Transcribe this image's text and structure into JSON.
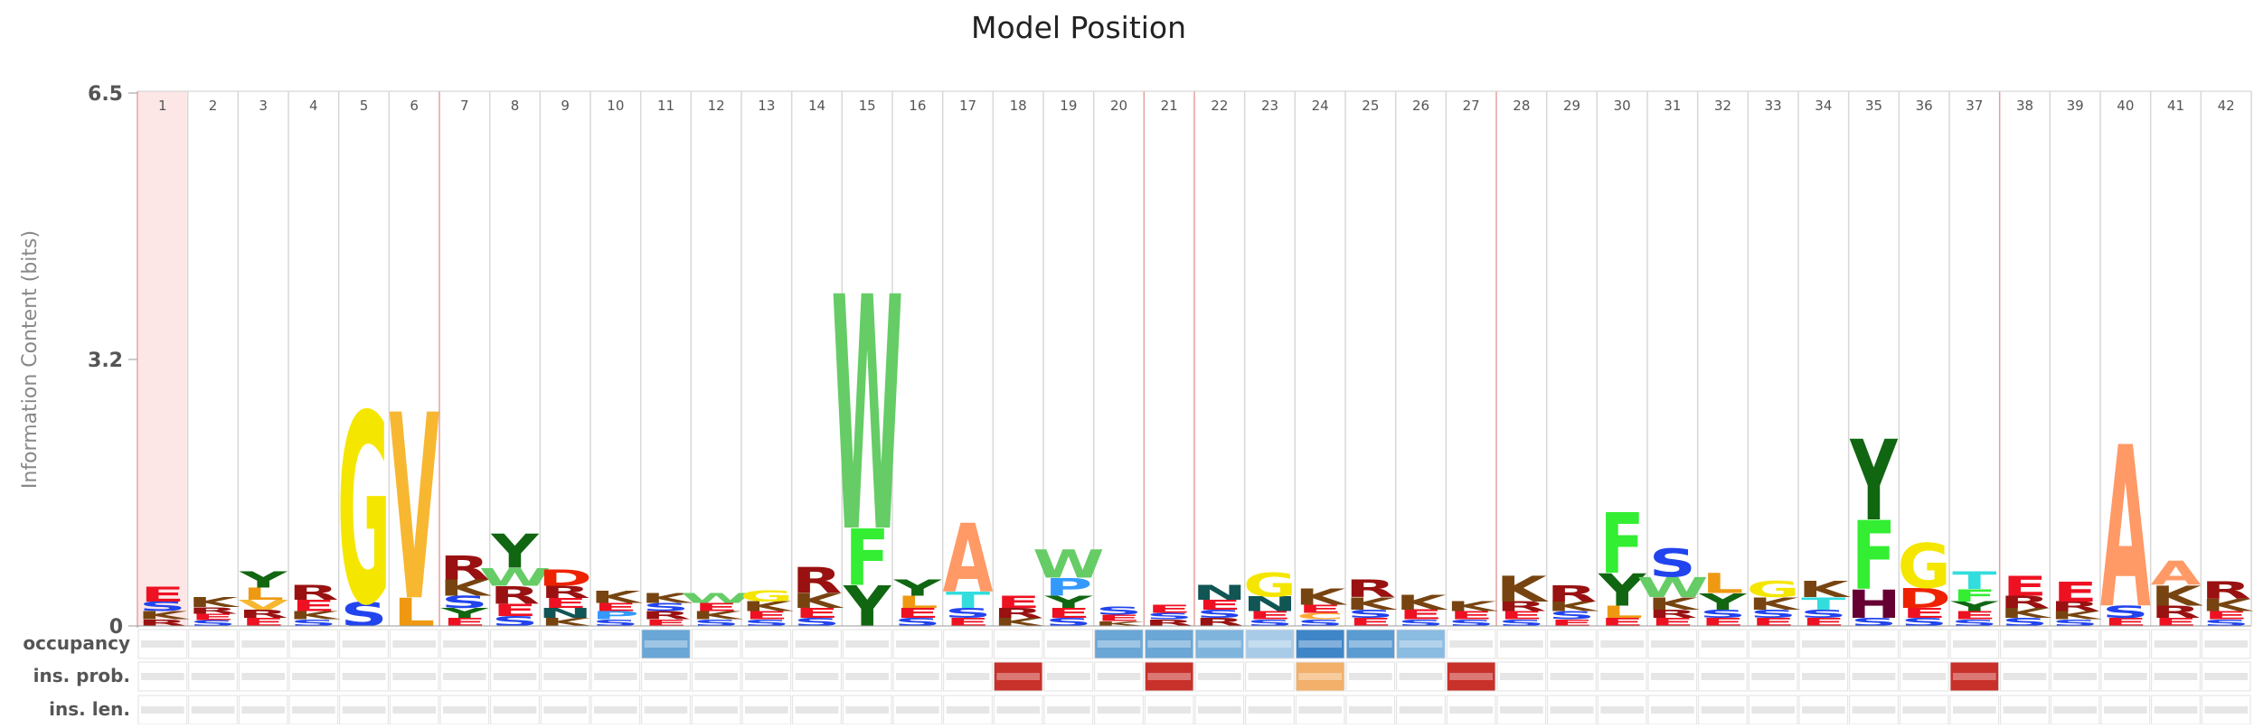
{
  "chart_data": {
    "type": "sequence-logo",
    "title": "Model Position",
    "ylabel": "Information Content (bits)",
    "ylim": [
      0,
      6.5
    ],
    "yticks": [
      "0",
      "3.2",
      "6.5"
    ],
    "positions": [
      "1",
      "2",
      "3",
      "4",
      "5",
      "6",
      "7",
      "8",
      "9",
      "10",
      "11",
      "12",
      "13",
      "14",
      "15",
      "16",
      "17",
      "18",
      "19",
      "20",
      "21",
      "22",
      "23",
      "24",
      "25",
      "26",
      "27",
      "28",
      "29",
      "30",
      "31",
      "32",
      "33",
      "34",
      "35",
      "36",
      "37",
      "38",
      "39",
      "40",
      "41",
      "42"
    ],
    "highlighted_positions": [
      1
    ],
    "row_labels": [
      "occupancy",
      "ins. prob.",
      "ins. len."
    ],
    "residue_colors": {
      "G": "#f5e600",
      "V": "#f7b731",
      "A": "#ff9966",
      "W": "#66cc66",
      "F": "#33ee33",
      "Y": "#116611",
      "H": "#660033",
      "R": "#991111",
      "K": "#774411",
      "E": "#ee1122",
      "D": "#ee2200",
      "S": "#2244ee",
      "T": "#33dddd",
      "N": "#115555",
      "P": "#3399ff",
      "Q": "#448899",
      "L": "#ee9911",
      "I": "#ddaa22",
      "C": "#ffaa33",
      "M": "#eecc44"
    },
    "columns": [
      {
        "pos": 1,
        "stack": [
          [
            "E",
            0.18
          ],
          [
            "S",
            0.12
          ],
          [
            "K",
            0.1
          ],
          [
            "R",
            0.08
          ]
        ]
      },
      {
        "pos": 2,
        "stack": [
          [
            "K",
            0.12
          ],
          [
            "E",
            0.08
          ],
          [
            "R",
            0.08
          ],
          [
            "S",
            0.07
          ]
        ]
      },
      {
        "pos": 3,
        "stack": [
          [
            "L",
            0.15
          ],
          [
            "Y",
            0.2
          ],
          [
            "V",
            0.12
          ],
          [
            "E",
            0.1
          ],
          [
            "R",
            0.1
          ]
        ]
      },
      {
        "pos": 4,
        "stack": [
          [
            "R",
            0.18
          ],
          [
            "E",
            0.14
          ],
          [
            "K",
            0.1
          ],
          [
            "S",
            0.08
          ]
        ]
      },
      {
        "pos": 5,
        "stack": [
          [
            "G",
            2.35
          ],
          [
            "S",
            0.3
          ]
        ]
      },
      {
        "pos": 6,
        "stack": [
          [
            "V",
            2.3
          ],
          [
            "L",
            0.35
          ]
        ]
      },
      {
        "pos": 7,
        "stack": [
          [
            "R",
            0.3
          ],
          [
            "K",
            0.2
          ],
          [
            "S",
            0.15
          ],
          [
            "Y",
            0.12
          ],
          [
            "E",
            0.1
          ]
        ]
      },
      {
        "pos": 8,
        "stack": [
          [
            "Y",
            0.42
          ],
          [
            "R",
            0.22
          ],
          [
            "W",
            0.22
          ],
          [
            "E",
            0.15
          ],
          [
            "S",
            0.12
          ]
        ]
      },
      {
        "pos": 9,
        "stack": [
          [
            "D",
            0.2
          ],
          [
            "R",
            0.15
          ],
          [
            "N",
            0.12
          ],
          [
            "E",
            0.12
          ],
          [
            "K",
            0.1
          ]
        ]
      },
      {
        "pos": 10,
        "stack": [
          [
            "K",
            0.15
          ],
          [
            "P",
            0.1
          ],
          [
            "E",
            0.1
          ],
          [
            "S",
            0.08
          ]
        ]
      },
      {
        "pos": 11,
        "stack": [
          [
            "K",
            0.12
          ],
          [
            "R",
            0.1
          ],
          [
            "S",
            0.1
          ],
          [
            "E",
            0.08
          ]
        ]
      },
      {
        "pos": 12,
        "stack": [
          [
            "W",
            0.12
          ],
          [
            "K",
            0.1
          ],
          [
            "E",
            0.1
          ],
          [
            "S",
            0.08
          ]
        ]
      },
      {
        "pos": 13,
        "stack": [
          [
            "G",
            0.14
          ],
          [
            "K",
            0.12
          ],
          [
            "E",
            0.1
          ],
          [
            "S",
            0.08
          ]
        ]
      },
      {
        "pos": 14,
        "stack": [
          [
            "R",
            0.32
          ],
          [
            "K",
            0.18
          ],
          [
            "E",
            0.12
          ],
          [
            "S",
            0.1
          ]
        ]
      },
      {
        "pos": 15,
        "stack": [
          [
            "W",
            2.9
          ],
          [
            "F",
            0.7
          ],
          [
            "Y",
            0.5
          ]
        ]
      },
      {
        "pos": 16,
        "stack": [
          [
            "Y",
            0.2
          ],
          [
            "L",
            0.15
          ],
          [
            "E",
            0.12
          ],
          [
            "S",
            0.1
          ]
        ]
      },
      {
        "pos": 17,
        "stack": [
          [
            "A",
            0.85
          ],
          [
            "T",
            0.2
          ],
          [
            "S",
            0.12
          ],
          [
            "E",
            0.1
          ]
        ]
      },
      {
        "pos": 18,
        "stack": [
          [
            "E",
            0.15
          ],
          [
            "R",
            0.12
          ],
          [
            "K",
            0.1
          ]
        ]
      },
      {
        "pos": 19,
        "stack": [
          [
            "W",
            0.35
          ],
          [
            "P",
            0.22
          ],
          [
            "Y",
            0.15
          ],
          [
            "E",
            0.12
          ],
          [
            "S",
            0.1
          ]
        ]
      },
      {
        "pos": 20,
        "stack": [
          [
            "S",
            0.1
          ],
          [
            "E",
            0.08
          ],
          [
            "K",
            0.06
          ]
        ]
      },
      {
        "pos": 21,
        "stack": [
          [
            "E",
            0.1
          ],
          [
            "R",
            0.08
          ],
          [
            "S",
            0.08
          ]
        ]
      },
      {
        "pos": 22,
        "stack": [
          [
            "N",
            0.18
          ],
          [
            "E",
            0.12
          ],
          [
            "R",
            0.1
          ],
          [
            "S",
            0.1
          ]
        ]
      },
      {
        "pos": 23,
        "stack": [
          [
            "G",
            0.3
          ],
          [
            "N",
            0.18
          ],
          [
            "E",
            0.1
          ],
          [
            "S",
            0.08
          ]
        ]
      },
      {
        "pos": 24,
        "stack": [
          [
            "K",
            0.2
          ],
          [
            "E",
            0.1
          ],
          [
            "S",
            0.08
          ],
          [
            "C",
            0.08
          ]
        ]
      },
      {
        "pos": 25,
        "stack": [
          [
            "R",
            0.22
          ],
          [
            "K",
            0.15
          ],
          [
            "E",
            0.1
          ],
          [
            "S",
            0.1
          ]
        ]
      },
      {
        "pos": 26,
        "stack": [
          [
            "K",
            0.18
          ],
          [
            "E",
            0.12
          ],
          [
            "S",
            0.08
          ]
        ]
      },
      {
        "pos": 27,
        "stack": [
          [
            "K",
            0.12
          ],
          [
            "E",
            0.1
          ],
          [
            "S",
            0.08
          ]
        ]
      },
      {
        "pos": 28,
        "stack": [
          [
            "K",
            0.32
          ],
          [
            "R",
            0.12
          ],
          [
            "E",
            0.1
          ],
          [
            "S",
            0.08
          ]
        ]
      },
      {
        "pos": 29,
        "stack": [
          [
            "R",
            0.2
          ],
          [
            "K",
            0.12
          ],
          [
            "S",
            0.1
          ],
          [
            "E",
            0.08
          ]
        ]
      },
      {
        "pos": 30,
        "stack": [
          [
            "F",
            0.75
          ],
          [
            "Y",
            0.4
          ],
          [
            "L",
            0.15
          ],
          [
            "E",
            0.1
          ]
        ]
      },
      {
        "pos": 31,
        "stack": [
          [
            "S",
            0.35
          ],
          [
            "W",
            0.25
          ],
          [
            "K",
            0.15
          ],
          [
            "E",
            0.1
          ],
          [
            "R",
            0.1
          ]
        ]
      },
      {
        "pos": 32,
        "stack": [
          [
            "L",
            0.25
          ],
          [
            "Y",
            0.2
          ],
          [
            "E",
            0.1
          ],
          [
            "S",
            0.1
          ]
        ]
      },
      {
        "pos": 33,
        "stack": [
          [
            "G",
            0.2
          ],
          [
            "K",
            0.15
          ],
          [
            "E",
            0.1
          ],
          [
            "S",
            0.1
          ]
        ]
      },
      {
        "pos": 34,
        "stack": [
          [
            "K",
            0.2
          ],
          [
            "T",
            0.15
          ],
          [
            "E",
            0.1
          ],
          [
            "S",
            0.1
          ]
        ]
      },
      {
        "pos": 35,
        "stack": [
          [
            "Y",
            1.0
          ],
          [
            "F",
            0.85
          ],
          [
            "H",
            0.35
          ],
          [
            "S",
            0.1
          ]
        ]
      },
      {
        "pos": 36,
        "stack": [
          [
            "G",
            0.55
          ],
          [
            "D",
            0.25
          ],
          [
            "E",
            0.12
          ],
          [
            "S",
            0.1
          ]
        ]
      },
      {
        "pos": 37,
        "stack": [
          [
            "T",
            0.22
          ],
          [
            "F",
            0.15
          ],
          [
            "Y",
            0.12
          ],
          [
            "E",
            0.1
          ],
          [
            "S",
            0.08
          ]
        ]
      },
      {
        "pos": 38,
        "stack": [
          [
            "E",
            0.25
          ],
          [
            "R",
            0.15
          ],
          [
            "K",
            0.12
          ],
          [
            "S",
            0.1
          ]
        ]
      },
      {
        "pos": 39,
        "stack": [
          [
            "E",
            0.25
          ],
          [
            "R",
            0.12
          ],
          [
            "K",
            0.1
          ],
          [
            "S",
            0.08
          ]
        ]
      },
      {
        "pos": 40,
        "stack": [
          [
            "A",
            2.0
          ],
          [
            "S",
            0.15
          ],
          [
            "E",
            0.1
          ]
        ]
      },
      {
        "pos": 41,
        "stack": [
          [
            "A",
            0.3
          ],
          [
            "K",
            0.25
          ],
          [
            "R",
            0.15
          ],
          [
            "E",
            0.1
          ]
        ]
      },
      {
        "pos": 42,
        "stack": [
          [
            "R",
            0.22
          ],
          [
            "K",
            0.15
          ],
          [
            "E",
            0.1
          ],
          [
            "S",
            0.08
          ]
        ]
      }
    ],
    "row_cell_colors": {
      "occupancy": {
        "11": "#6aa6d6",
        "20": "#6aa6d6",
        "21": "#6aa6d6",
        "22": "#7fb4dd",
        "23": "#a8cbe8",
        "24": "#3f86c8",
        "25": "#5a9bd1",
        "26": "#8abbe1"
      },
      "ins. prob.": {
        "18": "#c8302a",
        "21": "#c8302a",
        "24": "#f2b06b",
        "27": "#c8302a",
        "37": "#c8302a"
      },
      "ins. len.": {}
    }
  }
}
